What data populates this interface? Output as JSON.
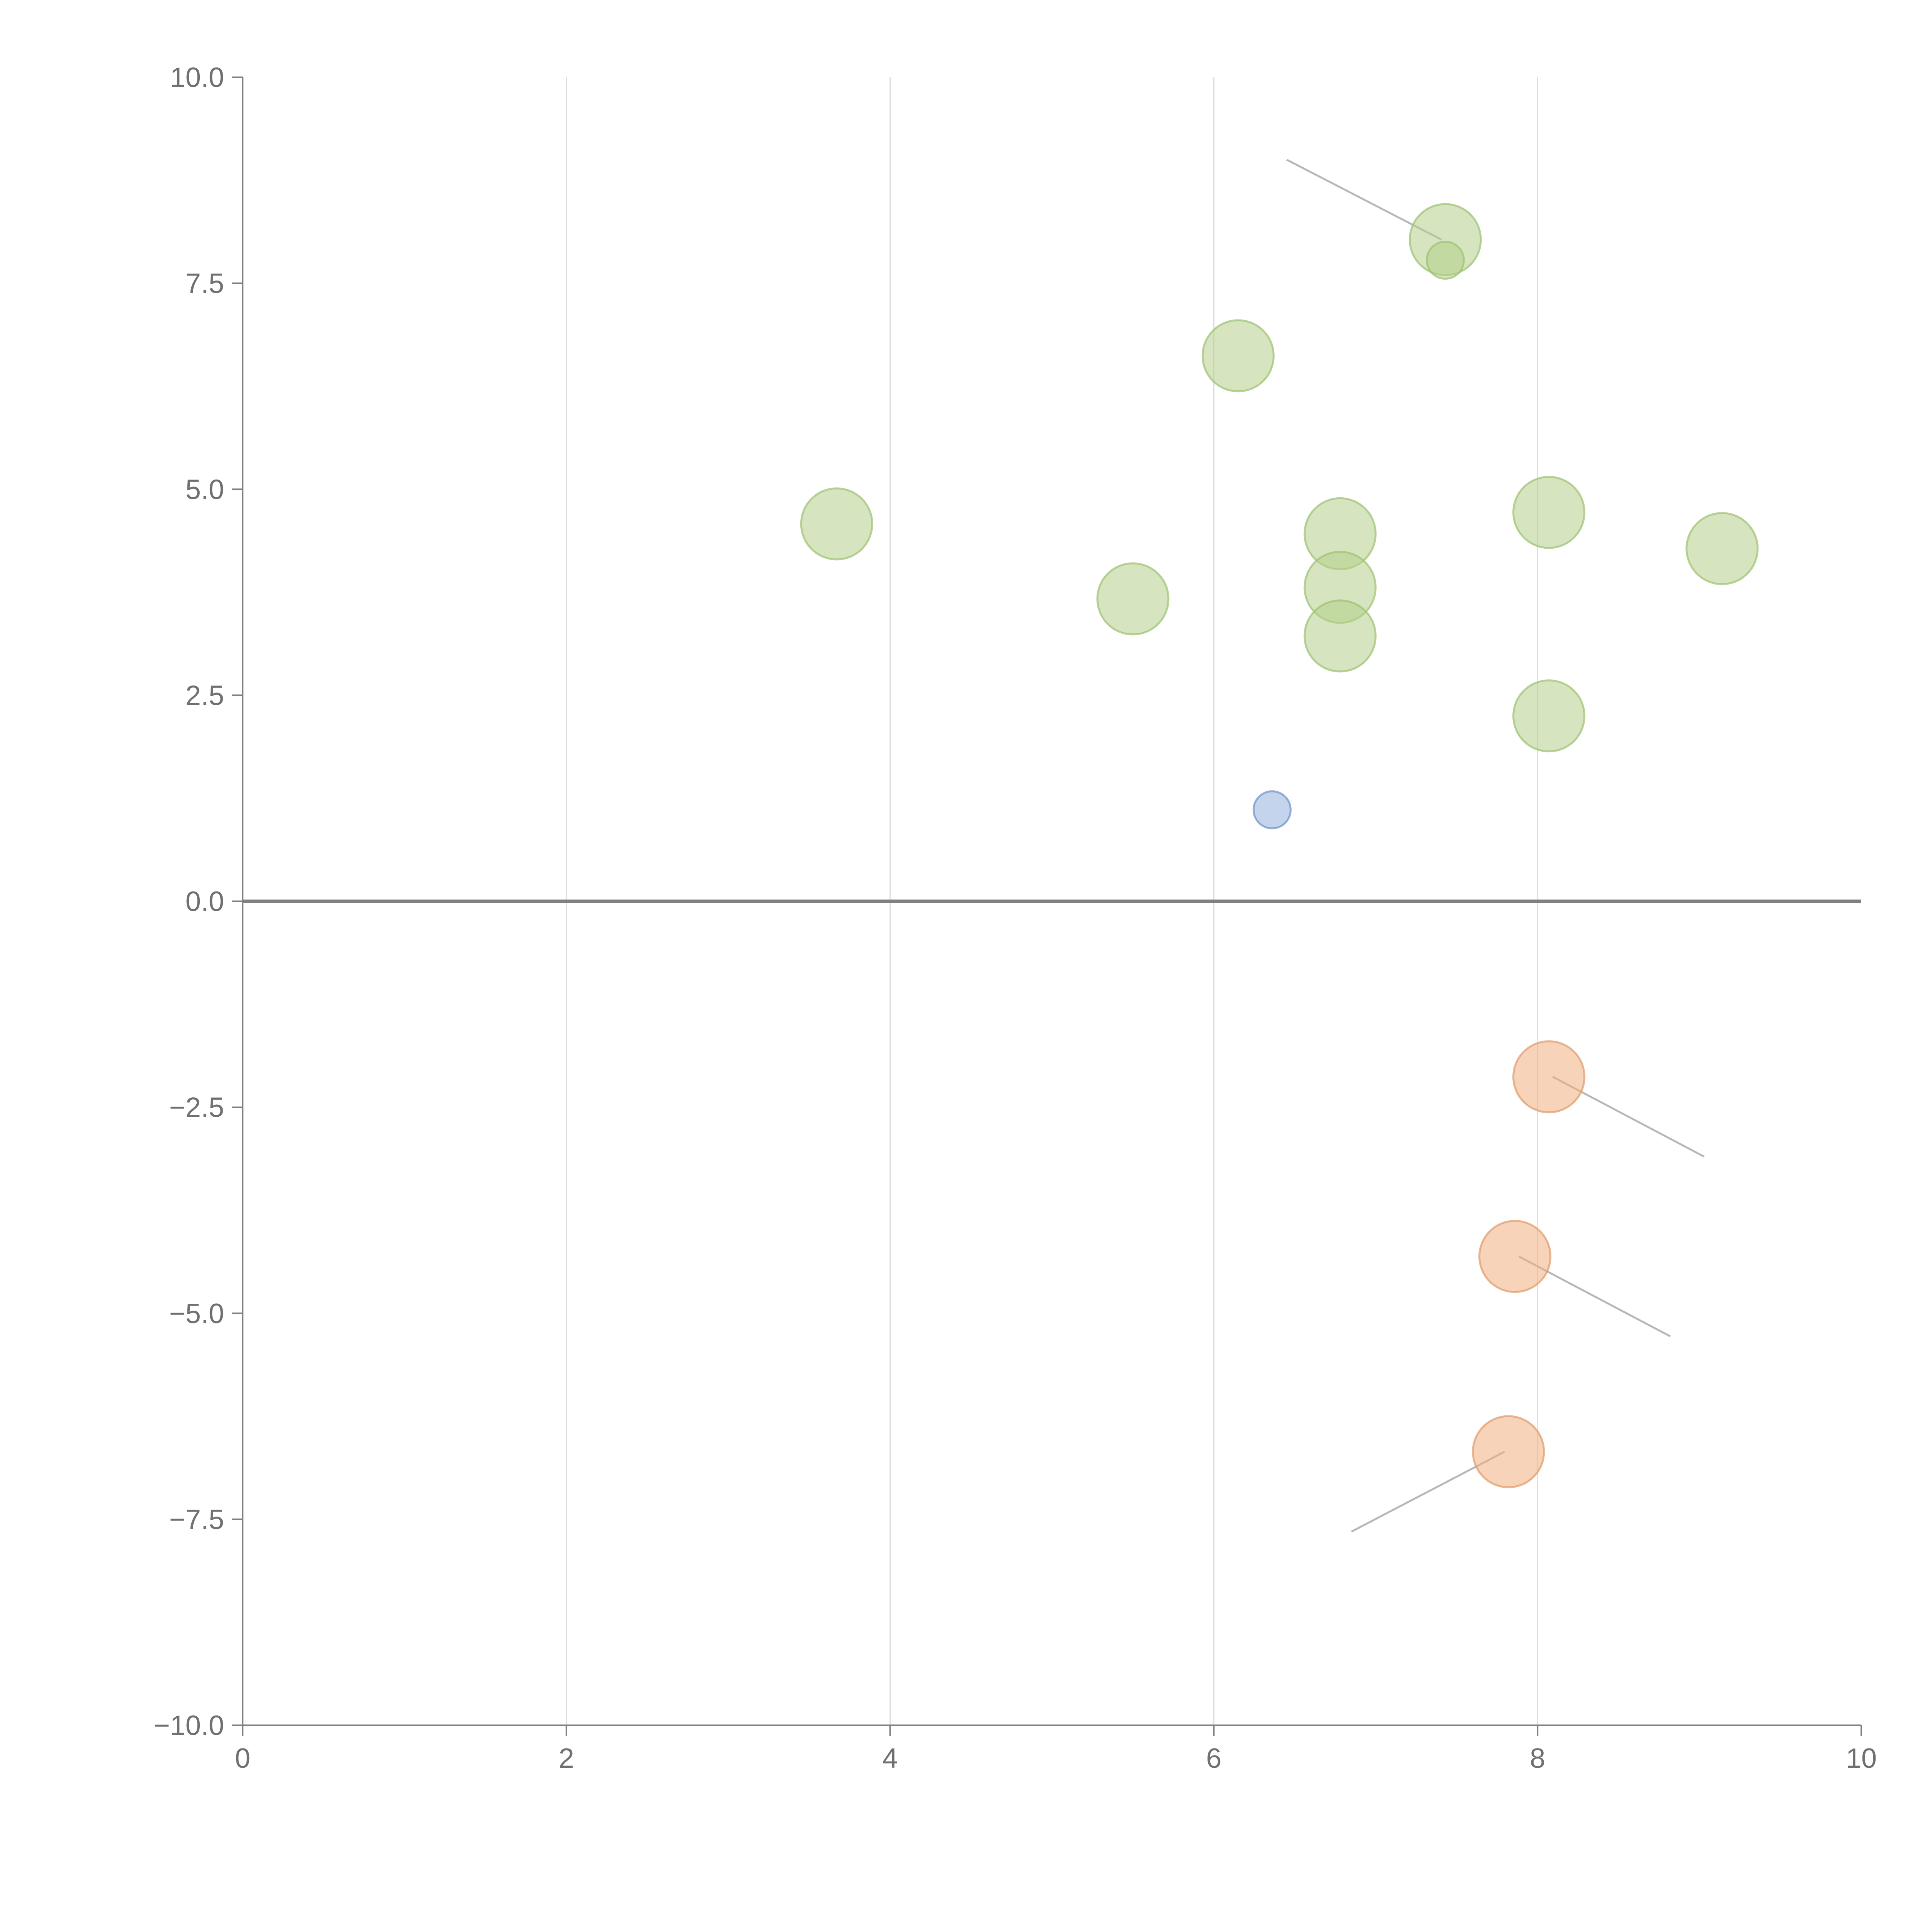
{
  "chart_data": {
    "type": "scatter",
    "title": "",
    "xlabel": "",
    "ylabel": "",
    "xlim": [
      0,
      10
    ],
    "ylim": [
      -10,
      10
    ],
    "grid": {
      "x": true,
      "y": false
    },
    "x_ticks": [
      "0",
      "2",
      "4",
      "6",
      "8",
      "10"
    ],
    "x_tick_values": [
      0,
      2,
      4,
      6,
      8,
      10
    ],
    "y_ticks": [
      "10.0",
      "7.5",
      "5.0",
      "2.5",
      "0.0",
      "−2.5",
      "−5.0",
      "−7.5",
      "−10.0"
    ],
    "y_tick_values": [
      10,
      7.5,
      5,
      2.5,
      0,
      -2.5,
      -5,
      -7.5,
      -10
    ],
    "colors": {
      "green": "#b5d08a",
      "green_stroke": "#9cc070",
      "orange": "#eeae80",
      "orange_stroke": "#e09a68",
      "blue": "#93b0dc",
      "blue_stroke": "#6f92c8"
    },
    "series": [
      {
        "name": "green",
        "points": [
          {
            "x": 7.43,
            "y": 8.03,
            "size": "large",
            "leader_end": [
              6.45,
              9.0
            ]
          },
          {
            "x": 7.43,
            "y": 7.78,
            "size": "small"
          },
          {
            "x": 6.15,
            "y": 6.62,
            "size": "large"
          },
          {
            "x": 3.67,
            "y": 4.58,
            "size": "large"
          },
          {
            "x": 6.78,
            "y": 4.46,
            "size": "large"
          },
          {
            "x": 8.07,
            "y": 4.72,
            "size": "large"
          },
          {
            "x": 9.14,
            "y": 4.28,
            "size": "large"
          },
          {
            "x": 6.78,
            "y": 3.81,
            "size": "large"
          },
          {
            "x": 5.5,
            "y": 3.67,
            "size": "large"
          },
          {
            "x": 6.78,
            "y": 3.22,
            "size": "large"
          },
          {
            "x": 8.07,
            "y": 2.25,
            "size": "large"
          }
        ]
      },
      {
        "name": "blue",
        "points": [
          {
            "x": 6.36,
            "y": 1.11,
            "size": "small"
          }
        ]
      },
      {
        "name": "orange",
        "points": [
          {
            "x": 8.07,
            "y": -2.13,
            "size": "large",
            "leader_end": [
              9.03,
              -3.1
            ]
          },
          {
            "x": 7.86,
            "y": -4.31,
            "size": "large",
            "leader_end": [
              8.82,
              -5.28
            ]
          },
          {
            "x": 7.82,
            "y": -6.68,
            "size": "large",
            "leader_end": [
              6.85,
              -7.65
            ]
          }
        ]
      }
    ]
  }
}
